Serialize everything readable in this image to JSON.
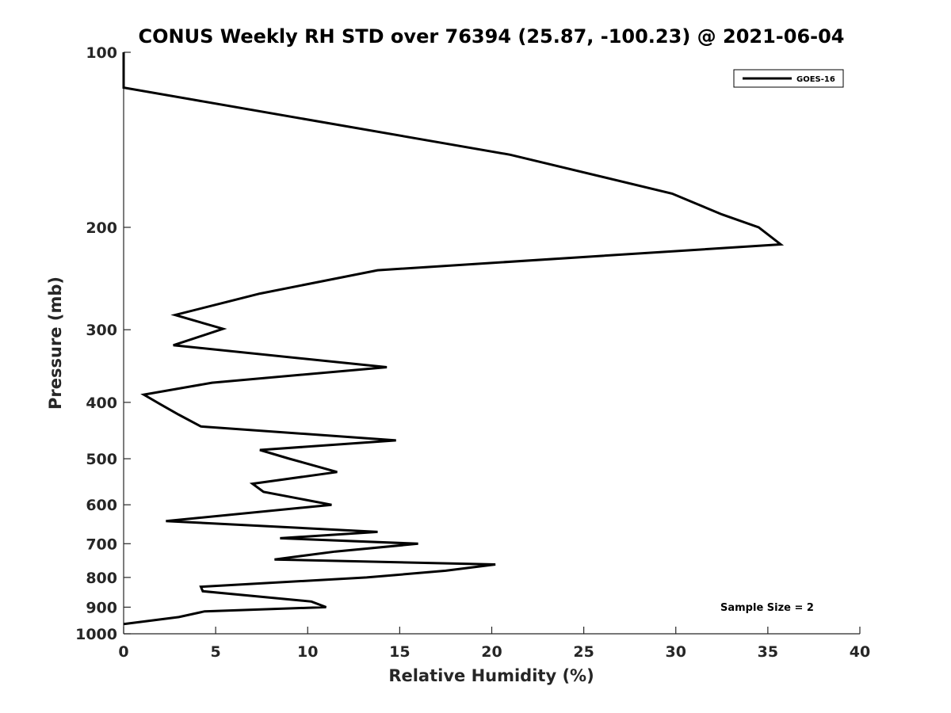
{
  "chart_data": {
    "type": "line",
    "title": "CONUS Weekly RH STD over 76394 (25.87, -100.23) @ 2021-06-04",
    "xlabel": "Relative Humidity (%)",
    "ylabel": "Pressure (mb)",
    "xlim": [
      0,
      40
    ],
    "ylim": [
      100,
      1000
    ],
    "yscale": "log",
    "yreversed": true,
    "xticks": [
      0,
      5,
      10,
      15,
      20,
      25,
      30,
      35,
      40
    ],
    "yticks": [
      100,
      200,
      300,
      400,
      500,
      600,
      700,
      800,
      900,
      1000
    ],
    "grid": false,
    "legend_location": "top-right",
    "annotation": "Sample Size = 2",
    "series": [
      {
        "name": "GOES-16",
        "color": "#000000",
        "x": [
          0,
          0,
          21.0,
          29.8,
          32.5,
          34.5,
          35.7,
          13.8,
          7.4,
          2.8,
          5.4,
          2.7,
          14.3,
          4.8,
          1.1,
          2.0,
          3.0,
          4.2,
          14.8,
          7.4,
          9.0,
          11.6,
          7.0,
          7.6,
          11.3,
          2.3,
          13.8,
          8.5,
          16.0,
          11.5,
          8.2,
          20.2,
          17.5,
          13.2,
          4.2,
          4.3,
          10.2,
          11.0,
          4.4,
          3.0,
          0.0
        ],
        "y": [
          100,
          115,
          150,
          175,
          190,
          200,
          214,
          237,
          260,
          283,
          299,
          319,
          348,
          370,
          388,
          403,
          420,
          440,
          465,
          483,
          500,
          527,
          552,
          570,
          600,
          640,
          668,
          685,
          700,
          722,
          745,
          760,
          779,
          800,
          830,
          845,
          880,
          900,
          915,
          936,
          962
        ]
      }
    ]
  }
}
